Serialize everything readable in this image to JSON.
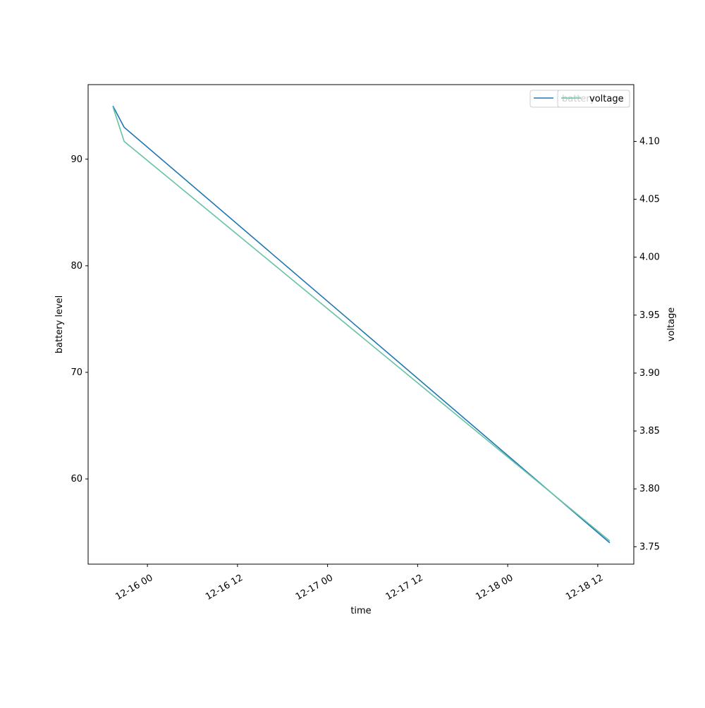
{
  "chart_data": {
    "type": "line",
    "x_label": "time",
    "y_label": "battery level",
    "y2_label": "voltage",
    "x": [
      "12-15 19:24",
      "12-15 20:54",
      "12-18 13:36"
    ],
    "xlim": [
      "12-15 16:06",
      "12-18 16:48"
    ],
    "xticks": [
      "12-16 00",
      "12-16 12",
      "12-17 00",
      "12-17 12",
      "12-18 00",
      "12-18 12"
    ],
    "ylim": [
      52.0,
      97.0
    ],
    "yticks": [
      60,
      70,
      80,
      90
    ],
    "y2lim": [
      3.735,
      4.149
    ],
    "y2ticks": [
      {
        "value": 3.75,
        "label": "3.75"
      },
      {
        "value": 3.8,
        "label": "3.80"
      },
      {
        "value": 3.85,
        "label": "3.85"
      },
      {
        "value": 3.9,
        "label": "3.90"
      },
      {
        "value": 3.95,
        "label": "3.95"
      },
      {
        "value": 4.0,
        "label": "4.00"
      },
      {
        "value": 4.05,
        "label": "4.05"
      },
      {
        "value": 4.1,
        "label": "4.10"
      }
    ],
    "series": [
      {
        "name": "battery",
        "color": "#1f77b4",
        "values": [
          95.0,
          93.0,
          54.0
        ]
      },
      {
        "name": "voltage",
        "color": "#66c2a5",
        "axis": "y2",
        "values": [
          4.13,
          4.1,
          3.755
        ]
      }
    ]
  }
}
